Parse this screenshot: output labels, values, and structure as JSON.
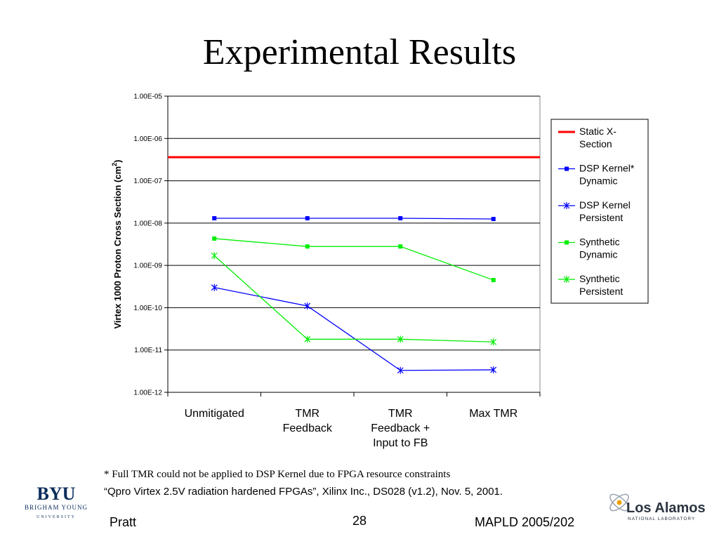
{
  "slide": {
    "title": "Experimental Results",
    "footnote_1": "* Full TMR could not be applied to DSP Kernel due to FPGA resource constraints",
    "footnote_2": "“Qpro Virtex 2.5V radiation hardened FPGAs”, Xilinx Inc., DS028 (v1.2), Nov. 5, 2001.",
    "footer_left": "Pratt",
    "page_number": "28",
    "footer_right": "MAPLD 2005/202",
    "logo_left_text": "BYU",
    "logo_left_subtext": "BRIGHAM YOUNG",
    "logo_left_subtext_2": "UNIVERSITY",
    "logo_right_text": "Los Alamos",
    "logo_right_subtext": "NATIONAL LABORATORY"
  },
  "chart_data": {
    "type": "line",
    "y_scale": "log",
    "ylabel_main": "Virtex 1000 Proton Cross Section (cm",
    "ylabel_sup": "2",
    "ylabel_close": ")",
    "xlabel": "",
    "ylim": [
      1e-12,
      1e-05
    ],
    "yticks": [
      "1.00E-12",
      "1.00E-11",
      "1.00E-10",
      "1.00E-09",
      "1.00E-08",
      "1.00E-07",
      "1.00E-06",
      "1.00E-05"
    ],
    "categories": [
      [
        "Unmitigated"
      ],
      [
        "TMR",
        "Feedback"
      ],
      [
        "TMR",
        "Feedback +",
        "Input to FB"
      ],
      [
        "Max TMR"
      ]
    ],
    "grid": "horizontal",
    "legend_position": "right",
    "series": [
      {
        "name": [
          "Static X-",
          "Section"
        ],
        "color": "#ff0000",
        "marker": "line-only",
        "constant": 3.6e-07
      },
      {
        "name": [
          "DSP Kernel*",
          "Dynamic"
        ],
        "color": "#0000ff",
        "marker": "square",
        "values": [
          1.3e-08,
          1.3e-08,
          1.3e-08,
          1.25e-08
        ]
      },
      {
        "name": [
          "DSP Kernel",
          "Persistent"
        ],
        "color": "#0000ff",
        "marker": "star",
        "values": [
          3e-10,
          1.1e-10,
          3.3e-12,
          3.4e-12
        ]
      },
      {
        "name": [
          "Synthetic",
          "Dynamic"
        ],
        "color": "#00ee00",
        "marker": "square",
        "values": [
          4.3e-09,
          2.8e-09,
          2.8e-09,
          4.5e-10
        ]
      },
      {
        "name": [
          "Synthetic",
          "Persistent"
        ],
        "color": "#00ee00",
        "marker": "star",
        "values": [
          1.7e-09,
          1.8e-11,
          1.8e-11,
          1.55e-11
        ]
      }
    ]
  }
}
